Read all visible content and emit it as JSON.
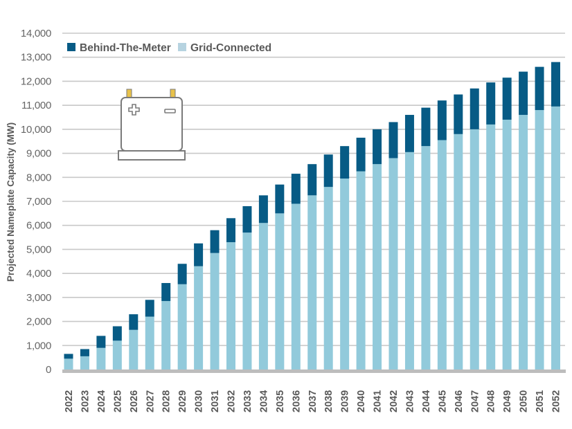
{
  "chart_data": {
    "type": "bar",
    "stacked": true,
    "title": "",
    "xlabel": "",
    "ylabel": "Projected Nameplate Capacity (MW)",
    "ylim": [
      0,
      14000
    ],
    "yticks": [
      0,
      1000,
      2000,
      3000,
      4000,
      5000,
      6000,
      7000,
      8000,
      9000,
      10000,
      11000,
      12000,
      13000,
      14000
    ],
    "ytick_labels": [
      "0",
      "1,000",
      "2,000",
      "3,000",
      "4,000",
      "5,000",
      "6,000",
      "7,000",
      "8,000",
      "9,000",
      "10,000",
      "11,000",
      "12,000",
      "13,000",
      "14,000"
    ],
    "grid": true,
    "legend_position": "top-left",
    "categories": [
      "2022",
      "2023",
      "2024",
      "2025",
      "2026",
      "2027",
      "2028",
      "2029",
      "2030",
      "2031",
      "2032",
      "2033",
      "2034",
      "2035",
      "2036",
      "2037",
      "2038",
      "2039",
      "2040",
      "2041",
      "2042",
      "2043",
      "2044",
      "2045",
      "2046",
      "2047",
      "2048",
      "2049",
      "2050",
      "2051",
      "2052"
    ],
    "series": [
      {
        "name": "Grid-Connected",
        "color": "#92CADB",
        "values": [
          450,
          550,
          900,
          1200,
          1650,
          2200,
          2850,
          3550,
          4300,
          4850,
          5300,
          5700,
          6100,
          6500,
          6900,
          7250,
          7600,
          7950,
          8250,
          8550,
          8800,
          9050,
          9300,
          9550,
          9800,
          10000,
          10200,
          10400,
          10600,
          10800,
          10950
        ]
      },
      {
        "name": "Behind-The-Meter",
        "color": "#075B85",
        "values": [
          200,
          300,
          500,
          600,
          650,
          700,
          750,
          850,
          950,
          950,
          1000,
          1100,
          1150,
          1200,
          1250,
          1300,
          1350,
          1350,
          1400,
          1450,
          1500,
          1550,
          1600,
          1650,
          1650,
          1700,
          1750,
          1750,
          1800,
          1800,
          1850
        ]
      }
    ],
    "legend": [
      {
        "label": "Behind-The-Meter",
        "color": "#075B85"
      },
      {
        "label": "Grid-Connected",
        "color": "#B6D3E0"
      }
    ],
    "gridline_color": "#C8C8C8",
    "axis_color": "#BDBDBD"
  },
  "decoration": {
    "icon": "battery-icon",
    "terminal_color": "#E8C24A",
    "outline_color": "#7A7A7A"
  }
}
